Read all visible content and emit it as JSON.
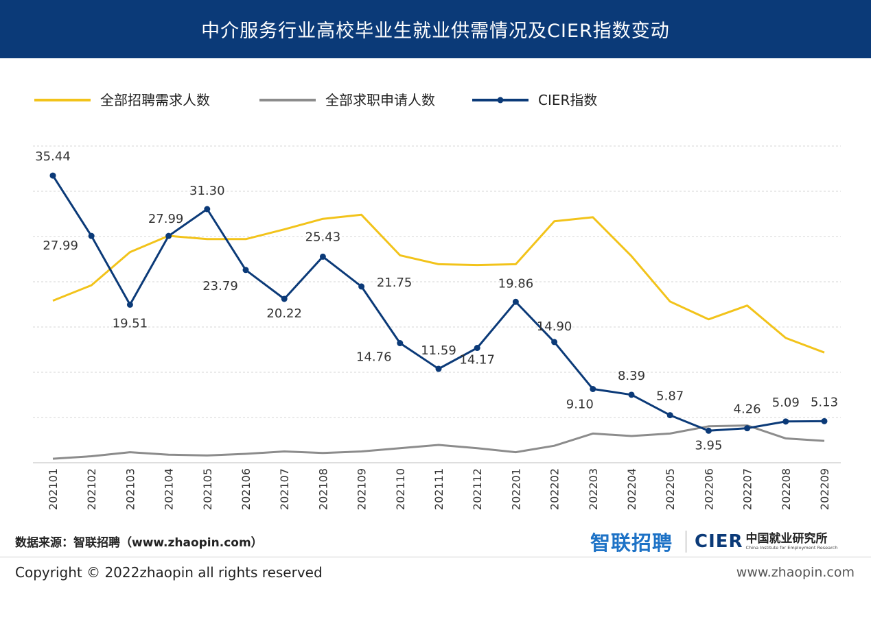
{
  "page": {
    "title": "中介服务行业高校毕业生就业供需情况及CIER指数变动",
    "source": "数据来源：智联招聘（www.zhaopin.com）",
    "copyright": "Copyright ©  2022zhaopin all rights reserved",
    "url": "www.zhaopin.com"
  },
  "logos": {
    "zhaopin": "智联招聘",
    "cier_mark": "CIER",
    "cier_cn": "中国就业研究所",
    "cier_en": "China Institute for Employment Research"
  },
  "chart_data": {
    "type": "line",
    "title": "中介服务行业高校毕业生就业供需情况及CIER指数变动",
    "categories": [
      "202101",
      "202102",
      "202103",
      "202104",
      "202105",
      "202106",
      "202107",
      "202108",
      "202109",
      "202110",
      "202111",
      "202112",
      "202201",
      "202202",
      "202203",
      "202204",
      "202205",
      "202206",
      "202207",
      "202208",
      "202209"
    ],
    "ylim": [
      0,
      37
    ],
    "grid": true,
    "legend_position": "top-left",
    "series": [
      {
        "name": "全部招聘需求人数",
        "color": "#f2c31a",
        "markers": false,
        "values": [
          20.0,
          21.9,
          26.0,
          28.0,
          27.6,
          27.6,
          28.8,
          30.1,
          30.6,
          25.6,
          24.5,
          24.4,
          24.5,
          29.8,
          30.3,
          25.5,
          19.9,
          17.7,
          19.4,
          15.4,
          13.6
        ]
      },
      {
        "name": "全部求职申请人数",
        "color": "#8c8c8c",
        "markers": false,
        "values": [
          0.5,
          0.8,
          1.3,
          1.0,
          0.9,
          1.1,
          1.4,
          1.2,
          1.4,
          1.8,
          2.2,
          1.8,
          1.3,
          2.1,
          3.6,
          3.3,
          3.6,
          4.5,
          4.6,
          3.0,
          2.7
        ]
      },
      {
        "name": "CIER指数",
        "color": "#0b3a78",
        "markers": true,
        "values": [
          35.44,
          27.99,
          19.51,
          27.99,
          31.3,
          23.79,
          20.22,
          25.43,
          21.75,
          14.76,
          11.59,
          14.17,
          19.86,
          14.9,
          9.1,
          8.39,
          5.87,
          3.95,
          4.26,
          5.09,
          5.13
        ],
        "labels": [
          "35.44",
          "27.99",
          "19.51",
          "27.99",
          "31.30",
          "23.79",
          "20.22",
          "25.43",
          "21.75",
          "14.76",
          "11.59",
          "14.17",
          "19.86",
          "14.90",
          "9.10",
          "8.39",
          "5.87",
          "3.95",
          "4.26",
          "5.09",
          "5.13"
        ]
      }
    ]
  }
}
